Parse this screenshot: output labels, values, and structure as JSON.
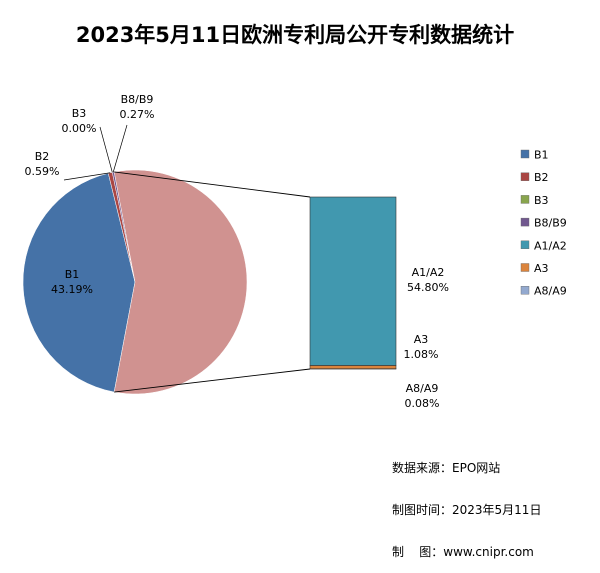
{
  "chart_data": {
    "type": "pie",
    "title": "2023年5月11日欧洲专利局公开专利数据统计",
    "series": [
      {
        "name": "B1",
        "value": 43.19,
        "label": "43.19%",
        "color": "#4572a7"
      },
      {
        "name": "B2",
        "value": 0.59,
        "label": "0.59%",
        "color": "#aa4643"
      },
      {
        "name": "B3",
        "value": 0.0,
        "label": "0.00%",
        "color": "#89a54e"
      },
      {
        "name": "B8/B9",
        "value": 0.27,
        "label": "0.27%",
        "color": "#71588f"
      },
      {
        "name": "A1/A2",
        "value": 54.8,
        "label": "54.80%",
        "color": "#4198af"
      },
      {
        "name": "A3",
        "value": 1.08,
        "label": "1.08%",
        "color": "#db843d"
      },
      {
        "name": "A8/A9",
        "value": 0.08,
        "label": "0.08%",
        "color": "#93a9cf"
      }
    ],
    "exploded_group": [
      "A1/A2",
      "A3",
      "A8/A9"
    ],
    "other_slice_color": "#d09290",
    "legend_position": "right"
  },
  "source_lines": [
    "数据来源：EPO网站",
    "制图时间：2023年5月11日",
    "制    图：www.cnipr.com"
  ]
}
